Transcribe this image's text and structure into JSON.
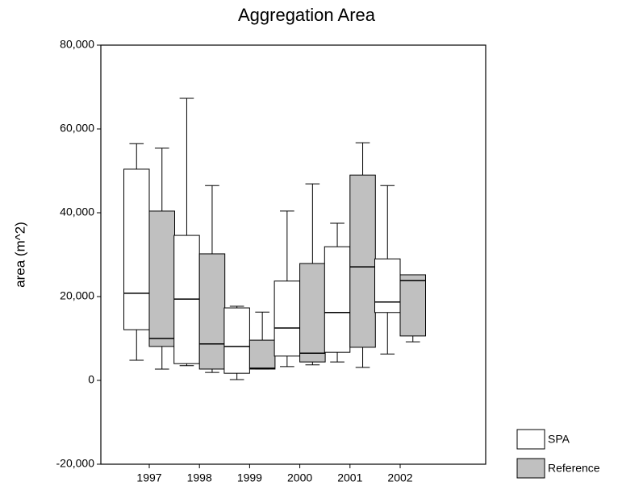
{
  "chart_data": {
    "type": "box",
    "title": "Aggregation Area",
    "y_label": "area (m^2)",
    "categories": [
      "1997",
      "1998",
      "1999",
      "2000",
      "2001",
      "2002"
    ],
    "ylim": [
      -20000,
      80000
    ],
    "yticks": [
      {
        "value": -20000,
        "label": "-20,000"
      },
      0,
      {
        "value": 20000,
        "label": "20,000"
      },
      {
        "value": 40000,
        "label": "40,000"
      },
      {
        "value": 60000,
        "label": "60,000"
      },
      {
        "value": 80000,
        "label": "80,000"
      }
    ],
    "legend": "bottom-right",
    "series": [
      {
        "name": "SPA",
        "color": "#ffffff",
        "whisker_low": [
          4800,
          3500,
          200,
          3300,
          4400,
          6300
        ],
        "q1": [
          12100,
          4000,
          1700,
          5800,
          6700,
          16200
        ],
        "median": [
          20800,
          19400,
          8100,
          12500,
          16200,
          18700
        ],
        "q3": [
          50400,
          34600,
          17300,
          23700,
          31900,
          29000
        ],
        "whisker_high": [
          56500,
          67300,
          17700,
          40400,
          37500,
          46500
        ]
      },
      {
        "name": "Reference",
        "color": "#c0c0c0",
        "whisker_low": [
          2700,
          1900,
          2700,
          3700,
          3100,
          9200
        ],
        "q1": [
          8100,
          2700,
          2700,
          4400,
          7900,
          10600
        ],
        "median": [
          10000,
          8700,
          2900,
          6500,
          27100,
          23800
        ],
        "q3": [
          40400,
          30200,
          9600,
          27900,
          49000,
          25200
        ],
        "whisker_high": [
          55400,
          46500,
          16300,
          46900,
          56700,
          25200
        ]
      }
    ]
  }
}
